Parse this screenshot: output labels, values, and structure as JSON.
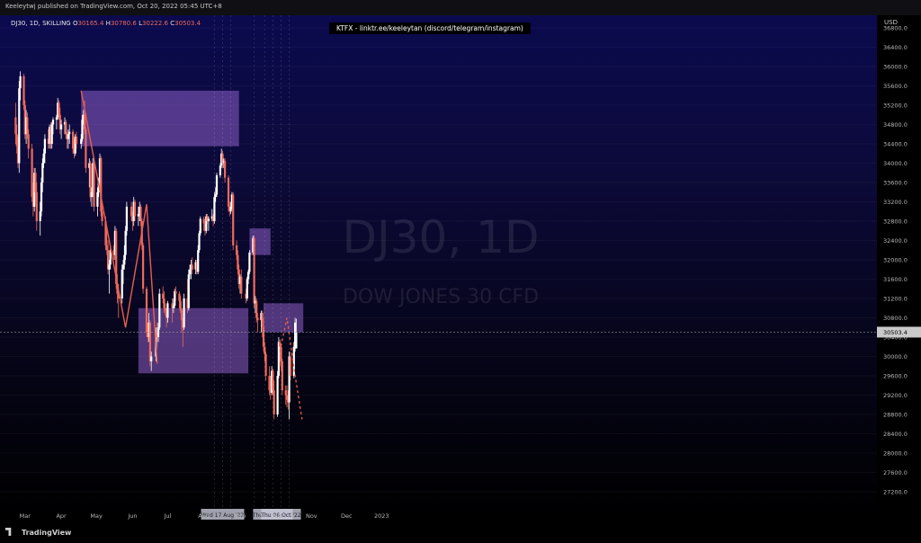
{
  "header": {
    "published": "Keeleytwj published on TradingView.com, Oct 20, 2022 05:45 UTC+8"
  },
  "symbol": {
    "name": "DJ30, 1D, SKILLING",
    "o_label": "O",
    "o_value": "30165.4",
    "h_label": "H",
    "h_value": "30780.6",
    "l_label": "L",
    "l_value": "30222.6",
    "c_label": "C",
    "c_value": "30503.4"
  },
  "promo_banner": "KTFX - linktr.ee/keeleytan (discord/telegram/instagram)",
  "watermark": {
    "title": "DJ30, 1D",
    "subtitle": "DOW JONES 30 CFD"
  },
  "footer": {
    "logo_text": "TradingView"
  },
  "colors": {
    "up": "#ffffff",
    "down": "#ef6a5a",
    "zone": "#8e5fc8",
    "annotation": "#e8604c"
  },
  "chart_data": {
    "type": "candlestick",
    "title": "",
    "currency": "USD",
    "ylim": [
      26900,
      37200
    ],
    "yticks": [
      "36800.0",
      "36400.0",
      "36000.0",
      "35600.0",
      "35200.0",
      "34800.0",
      "34400.0",
      "34000.0",
      "33600.0",
      "33200.0",
      "32800.0",
      "32400.0",
      "32000.0",
      "31600.0",
      "31200.0",
      "30800.0",
      "30400.0",
      "30000.0",
      "29600.0",
      "29200.0",
      "28800.0",
      "28400.0",
      "28000.0",
      "27600.0",
      "27200.0"
    ],
    "xticks": [
      "Mar",
      "Apr",
      "May",
      "Jun",
      "Jul",
      "Aug",
      "Sep",
      "Oct",
      "Nov",
      "Dec",
      "2023"
    ],
    "date_markers": [
      "Wed 17 Aug '22",
      "Thu 29 Sep '22",
      "Thu 06 Oct '22"
    ],
    "current_price": 30503.4,
    "zones": [
      {
        "from": "Apr 18",
        "to": "Aug 31",
        "low": 34350,
        "high": 35500
      },
      {
        "from": "Jun 06",
        "to": "Sep 08",
        "low": 29650,
        "high": 31000
      },
      {
        "from": "Sep 09",
        "to": "Sep 27",
        "low": 32100,
        "high": 32650
      },
      {
        "from": "Sep 21",
        "to": "Oct 25",
        "low": 30500,
        "high": 31100
      }
    ],
    "annotation_path": [
      [
        "Apr 18",
        35500
      ],
      [
        "May 26",
        30600
      ],
      [
        "Jun 13",
        33150
      ],
      [
        "Jun 22",
        29850
      ]
    ],
    "projection_path": [
      [
        "Oct 05",
        30100
      ],
      [
        "Oct 11",
        30800
      ],
      [
        "Oct 18",
        29600
      ],
      [
        "Oct 24",
        28700
      ]
    ],
    "candles": [
      [
        "Feb 21",
        34950,
        35250,
        34400,
        34600
      ],
      [
        "Feb 22",
        34600,
        34800,
        34200,
        34350
      ],
      [
        "Feb 23",
        34350,
        34550,
        33900,
        34000
      ],
      [
        "Feb 24",
        34000,
        35700,
        33800,
        35550
      ],
      [
        "Feb 25",
        35550,
        35900,
        35300,
        35800
      ],
      [
        "Feb 28",
        35800,
        35850,
        35100,
        35200
      ],
      [
        "Mar 01",
        35200,
        35300,
        34500,
        34600
      ],
      [
        "Mar 02",
        34600,
        35100,
        34400,
        34950
      ],
      [
        "Mar 03",
        34950,
        35050,
        34500,
        34600
      ],
      [
        "Mar 04",
        34600,
        34700,
        34100,
        34300
      ],
      [
        "Mar 07",
        34300,
        34400,
        33200,
        33300
      ],
      [
        "Mar 08",
        33300,
        33600,
        32900,
        33100
      ],
      [
        "Mar 09",
        33100,
        33900,
        33000,
        33800
      ],
      [
        "Mar 10",
        33800,
        33900,
        33200,
        33400
      ],
      [
        "Mar 11",
        33400,
        33600,
        32600,
        32800
      ],
      [
        "Mar 14",
        32800,
        33200,
        32500,
        33000
      ],
      [
        "Mar 15",
        33000,
        33700,
        32900,
        33600
      ],
      [
        "Mar 16",
        33600,
        34100,
        33400,
        34000
      ],
      [
        "Mar 17",
        34000,
        34300,
        33900,
        34200
      ],
      [
        "Mar 18",
        34200,
        34600,
        34000,
        34500
      ],
      [
        "Mar 21",
        34500,
        34700,
        34300,
        34400
      ],
      [
        "Mar 22",
        34400,
        34800,
        34300,
        34750
      ],
      [
        "Mar 23",
        34750,
        34850,
        34300,
        34400
      ],
      [
        "Mar 24",
        34400,
        34850,
        34300,
        34800
      ],
      [
        "Mar 25",
        34800,
        34950,
        34600,
        34900
      ],
      [
        "Mar 28",
        34900,
        35000,
        34700,
        34950
      ],
      [
        "Mar 29",
        34950,
        35350,
        34900,
        35250
      ],
      [
        "Mar 30",
        35250,
        35300,
        34900,
        35000
      ],
      [
        "Mar 31",
        35000,
        35150,
        34600,
        34700
      ],
      [
        "Apr 01",
        34700,
        34900,
        34500,
        34800
      ],
      [
        "Apr 04",
        34800,
        34950,
        34600,
        34850
      ],
      [
        "Apr 05",
        34850,
        34900,
        34500,
        34600
      ],
      [
        "Apr 06",
        34600,
        34650,
        34300,
        34500
      ],
      [
        "Apr 07",
        34500,
        34700,
        34300,
        34600
      ],
      [
        "Apr 08",
        34600,
        34800,
        34400,
        34650
      ],
      [
        "Apr 11",
        34650,
        34700,
        34200,
        34300
      ],
      [
        "Apr 12",
        34300,
        34500,
        34100,
        34200
      ],
      [
        "Apr 13",
        34200,
        34600,
        34150,
        34550
      ],
      [
        "Apr 14",
        34550,
        34650,
        34300,
        34400
      ],
      [
        "Apr 18",
        34400,
        34600,
        34300,
        34500
      ],
      [
        "Apr 19",
        34500,
        35000,
        34450,
        34900
      ],
      [
        "Apr 20",
        34900,
        35100,
        34800,
        35000
      ],
      [
        "Apr 21",
        35000,
        35300,
        34600,
        34700
      ],
      [
        "Apr 22",
        34700,
        34750,
        33800,
        33900
      ],
      [
        "Apr 25",
        33900,
        34100,
        33500,
        34000
      ],
      [
        "Apr 26",
        34000,
        34050,
        33200,
        33300
      ],
      [
        "Apr 27",
        33300,
        33500,
        33100,
        33400
      ],
      [
        "Apr 28",
        33400,
        34100,
        33300,
        34000
      ],
      [
        "Apr 29",
        34000,
        34050,
        33000,
        33100
      ],
      [
        "May 02",
        33100,
        33500,
        32900,
        33400
      ],
      [
        "May 03",
        33400,
        33700,
        33300,
        33600
      ],
      [
        "May 04",
        33600,
        34200,
        33400,
        34100
      ],
      [
        "May 05",
        34100,
        34150,
        32900,
        33000
      ],
      [
        "May 06",
        33000,
        33200,
        32700,
        32800
      ],
      [
        "May 09",
        32800,
        32900,
        32200,
        32300
      ],
      [
        "May 10",
        32300,
        32600,
        32100,
        32200
      ],
      [
        "May 11",
        32200,
        32400,
        31700,
        31800
      ],
      [
        "May 12",
        31800,
        32000,
        31300,
        31900
      ],
      [
        "May 13",
        31900,
        32300,
        31800,
        32200
      ],
      [
        "May 16",
        32200,
        32300,
        32000,
        32100
      ],
      [
        "May 17",
        32100,
        32700,
        32000,
        32600
      ],
      [
        "May 18",
        32600,
        32650,
        31400,
        31500
      ],
      [
        "May 19",
        31500,
        31700,
        31100,
        31300
      ],
      [
        "May 20",
        31300,
        31500,
        30800,
        31200
      ],
      [
        "May 23",
        31200,
        31900,
        31100,
        31800
      ],
      [
        "May 24",
        31800,
        32000,
        31500,
        31900
      ],
      [
        "May 25",
        31900,
        32300,
        31800,
        32100
      ],
      [
        "May 26",
        32100,
        32700,
        32000,
        32600
      ],
      [
        "May 27",
        32600,
        33200,
        32500,
        33100
      ],
      [
        "May 31",
        33100,
        33200,
        32800,
        32900
      ],
      [
        "Jun 01",
        32900,
        33000,
        32600,
        32800
      ],
      [
        "Jun 02",
        32800,
        33300,
        32700,
        33200
      ],
      [
        "Jun 03",
        33200,
        33250,
        32800,
        32900
      ],
      [
        "Jun 06",
        32900,
        33100,
        32700,
        32950
      ],
      [
        "Jun 07",
        32950,
        33200,
        32800,
        33100
      ],
      [
        "Jun 08",
        33100,
        33150,
        32700,
        32800
      ],
      [
        "Jun 09",
        32800,
        32850,
        32200,
        32300
      ],
      [
        "Jun 10",
        32300,
        32350,
        31300,
        31400
      ],
      [
        "Jun 13",
        31400,
        31450,
        30400,
        30500
      ],
      [
        "Jun 14",
        30500,
        30700,
        30300,
        30400
      ],
      [
        "Jun 15",
        30400,
        30900,
        30300,
        30700
      ],
      [
        "Jun 16",
        30700,
        30750,
        29800,
        29900
      ],
      [
        "Jun 17",
        29900,
        30100,
        29700,
        30000
      ],
      [
        "Jun 21",
        30000,
        30600,
        29900,
        30500
      ],
      [
        "Jun 22",
        30500,
        30700,
        30300,
        30400
      ],
      [
        "Jun 23",
        30400,
        30700,
        30300,
        30600
      ],
      [
        "Jun 24",
        30600,
        31400,
        30550,
        31300
      ],
      [
        "Jun 27",
        31300,
        31450,
        31100,
        31200
      ],
      [
        "Jun 28",
        31200,
        31350,
        30900,
        31000
      ],
      [
        "Jun 29",
        31000,
        31100,
        30850,
        30950
      ],
      [
        "Jun 30",
        30950,
        31000,
        30600,
        30800
      ],
      [
        "Jul 01",
        30800,
        31150,
        30700,
        31100
      ],
      [
        "Jul 05",
        31100,
        31200,
        30700,
        31000
      ],
      [
        "Jul 06",
        31000,
        31200,
        30900,
        31050
      ],
      [
        "Jul 07",
        31050,
        31400,
        31000,
        31350
      ],
      [
        "Jul 08",
        31350,
        31450,
        31150,
        31300
      ],
      [
        "Jul 11",
        31300,
        31350,
        31000,
        31150
      ],
      [
        "Jul 12",
        31150,
        31250,
        30900,
        30950
      ],
      [
        "Jul 13",
        30950,
        31000,
        30500,
        30750
      ],
      [
        "Jul 14",
        30750,
        30800,
        30200,
        30600
      ],
      [
        "Jul 15",
        30600,
        31300,
        30550,
        31200
      ],
      [
        "Jul 18",
        31200,
        31600,
        30900,
        31000
      ],
      [
        "Jul 19",
        31000,
        31800,
        30950,
        31700
      ],
      [
        "Jul 20",
        31700,
        31900,
        31600,
        31800
      ],
      [
        "Jul 21",
        31800,
        32000,
        31600,
        31900
      ],
      [
        "Jul 22",
        31900,
        32050,
        31700,
        31800
      ],
      [
        "Jul 25",
        31800,
        32000,
        31700,
        31950
      ],
      [
        "Jul 26",
        31950,
        32000,
        31700,
        31750
      ],
      [
        "Jul 27",
        31750,
        32300,
        31700,
        32200
      ],
      [
        "Jul 28",
        32200,
        32600,
        32150,
        32550
      ],
      [
        "Jul 29",
        32550,
        32900,
        32500,
        32850
      ],
      [
        "Aug 01",
        32850,
        32900,
        32600,
        32750
      ],
      [
        "Aug 02",
        32750,
        32800,
        32500,
        32600
      ],
      [
        "Aug 03",
        32600,
        32950,
        32550,
        32900
      ],
      [
        "Aug 04",
        32900,
        32950,
        32750,
        32800
      ],
      [
        "Aug 05",
        32800,
        32900,
        32600,
        32850
      ],
      [
        "Aug 08",
        32850,
        33050,
        32800,
        32900
      ],
      [
        "Aug 09",
        32900,
        32950,
        32700,
        32800
      ],
      [
        "Aug 10",
        32800,
        33400,
        32750,
        33300
      ],
      [
        "Aug 11",
        33300,
        33500,
        33200,
        33350
      ],
      [
        "Aug 12",
        33350,
        33800,
        33300,
        33750
      ],
      [
        "Aug 15",
        33750,
        34000,
        33700,
        33950
      ],
      [
        "Aug 16",
        33950,
        34300,
        33900,
        34200
      ],
      [
        "Aug 17",
        34200,
        34250,
        33900,
        34000
      ],
      [
        "Aug 18",
        34000,
        34100,
        33900,
        34050
      ],
      [
        "Aug 19",
        34050,
        34100,
        33600,
        33700
      ],
      [
        "Aug 22",
        33700,
        33750,
        33000,
        33100
      ],
      [
        "Aug 23",
        33100,
        33200,
        32900,
        33000
      ],
      [
        "Aug 24",
        33000,
        33200,
        32950,
        33100
      ],
      [
        "Aug 25",
        33100,
        33400,
        33050,
        33350
      ],
      [
        "Aug 26",
        33350,
        33400,
        32200,
        32300
      ],
      [
        "Aug 29",
        32300,
        32400,
        32000,
        32100
      ],
      [
        "Aug 30",
        32100,
        32200,
        31700,
        31800
      ],
      [
        "Aug 31",
        31800,
        31900,
        31400,
        31500
      ],
      [
        "Sep 01",
        31500,
        31700,
        31300,
        31650
      ],
      [
        "Sep 02",
        31650,
        31800,
        31200,
        31300
      ],
      [
        "Sep 06",
        31300,
        31400,
        31100,
        31200
      ],
      [
        "Sep 07",
        31200,
        31650,
        31150,
        31600
      ],
      [
        "Sep 08",
        31600,
        31800,
        31500,
        31750
      ],
      [
        "Sep 09",
        31750,
        32200,
        31700,
        32150
      ],
      [
        "Sep 12",
        32150,
        32500,
        32100,
        32450
      ],
      [
        "Sep 13",
        32450,
        32500,
        31000,
        31100
      ],
      [
        "Sep 14",
        31100,
        31250,
        30900,
        31150
      ],
      [
        "Sep 15",
        31150,
        31200,
        30700,
        30800
      ],
      [
        "Sep 16",
        30800,
        30900,
        30500,
        30750
      ],
      [
        "Sep 19",
        30750,
        30950,
        30500,
        30900
      ],
      [
        "Sep 20",
        30900,
        30950,
        30400,
        30600
      ],
      [
        "Sep 21",
        30600,
        30800,
        30100,
        30200
      ],
      [
        "Sep 22",
        30200,
        30300,
        29900,
        30050
      ],
      [
        "Sep 23",
        30050,
        30100,
        29500,
        29600
      ],
      [
        "Sep 26",
        29600,
        29800,
        29200,
        29300
      ],
      [
        "Sep 27",
        29300,
        29600,
        29100,
        29250
      ],
      [
        "Sep 28",
        29250,
        29800,
        29200,
        29700
      ],
      [
        "Sep 29",
        29700,
        29750,
        29200,
        29300
      ],
      [
        "Sep 30",
        29300,
        29500,
        28700,
        28800
      ],
      [
        "Oct 03",
        28800,
        29700,
        28750,
        29600
      ],
      [
        "Oct 04",
        29600,
        30400,
        29550,
        30300
      ],
      [
        "Oct 05",
        30300,
        30350,
        29800,
        30200
      ],
      [
        "Oct 06",
        30200,
        30250,
        29700,
        29900
      ],
      [
        "Oct 07",
        29900,
        29950,
        29200,
        29300
      ],
      [
        "Oct 10",
        29300,
        29400,
        29000,
        29200
      ],
      [
        "Oct 11",
        29200,
        29400,
        28950,
        29100
      ],
      [
        "Oct 12",
        29100,
        29300,
        28900,
        29050
      ],
      [
        "Oct 13",
        29050,
        30100,
        28700,
        30000
      ],
      [
        "Oct 14",
        30000,
        30100,
        29500,
        29600
      ],
      [
        "Oct 17",
        29600,
        30300,
        29550,
        30200
      ],
      [
        "Oct 18",
        30200,
        30800,
        30100,
        30700
      ],
      [
        "Oct 19",
        30165.4,
        30780.6,
        30222.6,
        30503.4
      ]
    ]
  }
}
